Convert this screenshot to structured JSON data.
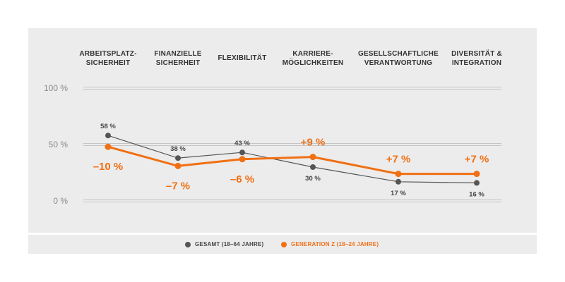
{
  "chart_data": {
    "type": "line",
    "categories": [
      [
        "ARBEITSPLATZ-",
        "SICHERHEIT"
      ],
      [
        "FINANZIELLE",
        "SICHERHEIT"
      ],
      [
        "FLEXIBILITÄT"
      ],
      [
        "KARRIERE-",
        "MÖGLICHKEITEN"
      ],
      [
        "GESELLSCHAFTLICHE",
        "VERANTWORTUNG"
      ],
      [
        "DIVERSITÄT &",
        "INTEGRATION"
      ]
    ],
    "yticks": [
      "100 %",
      "50 %",
      "0 %"
    ],
    "ylim": [
      0,
      100
    ],
    "series": [
      {
        "name": "GESAMT (18–64 JAHRE)",
        "color": "#555555",
        "values": [
          58,
          38,
          43,
          30,
          17,
          16
        ],
        "labels": [
          "58 %",
          "38 %",
          "43 %",
          "30 %",
          "17 %",
          "16 %"
        ]
      },
      {
        "name": "GENERATION Z (18–24 JAHRE)",
        "color": "#f07014",
        "values": [
          48,
          31,
          37,
          39,
          24,
          24
        ],
        "labels": [
          "–10 %",
          "–7 %",
          "–6 %",
          "+9 %",
          "+7 %",
          "+7 %"
        ]
      }
    ],
    "grid": true,
    "legend": "bottom"
  },
  "legend": {
    "gesamt": "GESAMT (18–64 JAHRE)",
    "genz": "GENERATION Z (18–24 JAHRE)"
  }
}
